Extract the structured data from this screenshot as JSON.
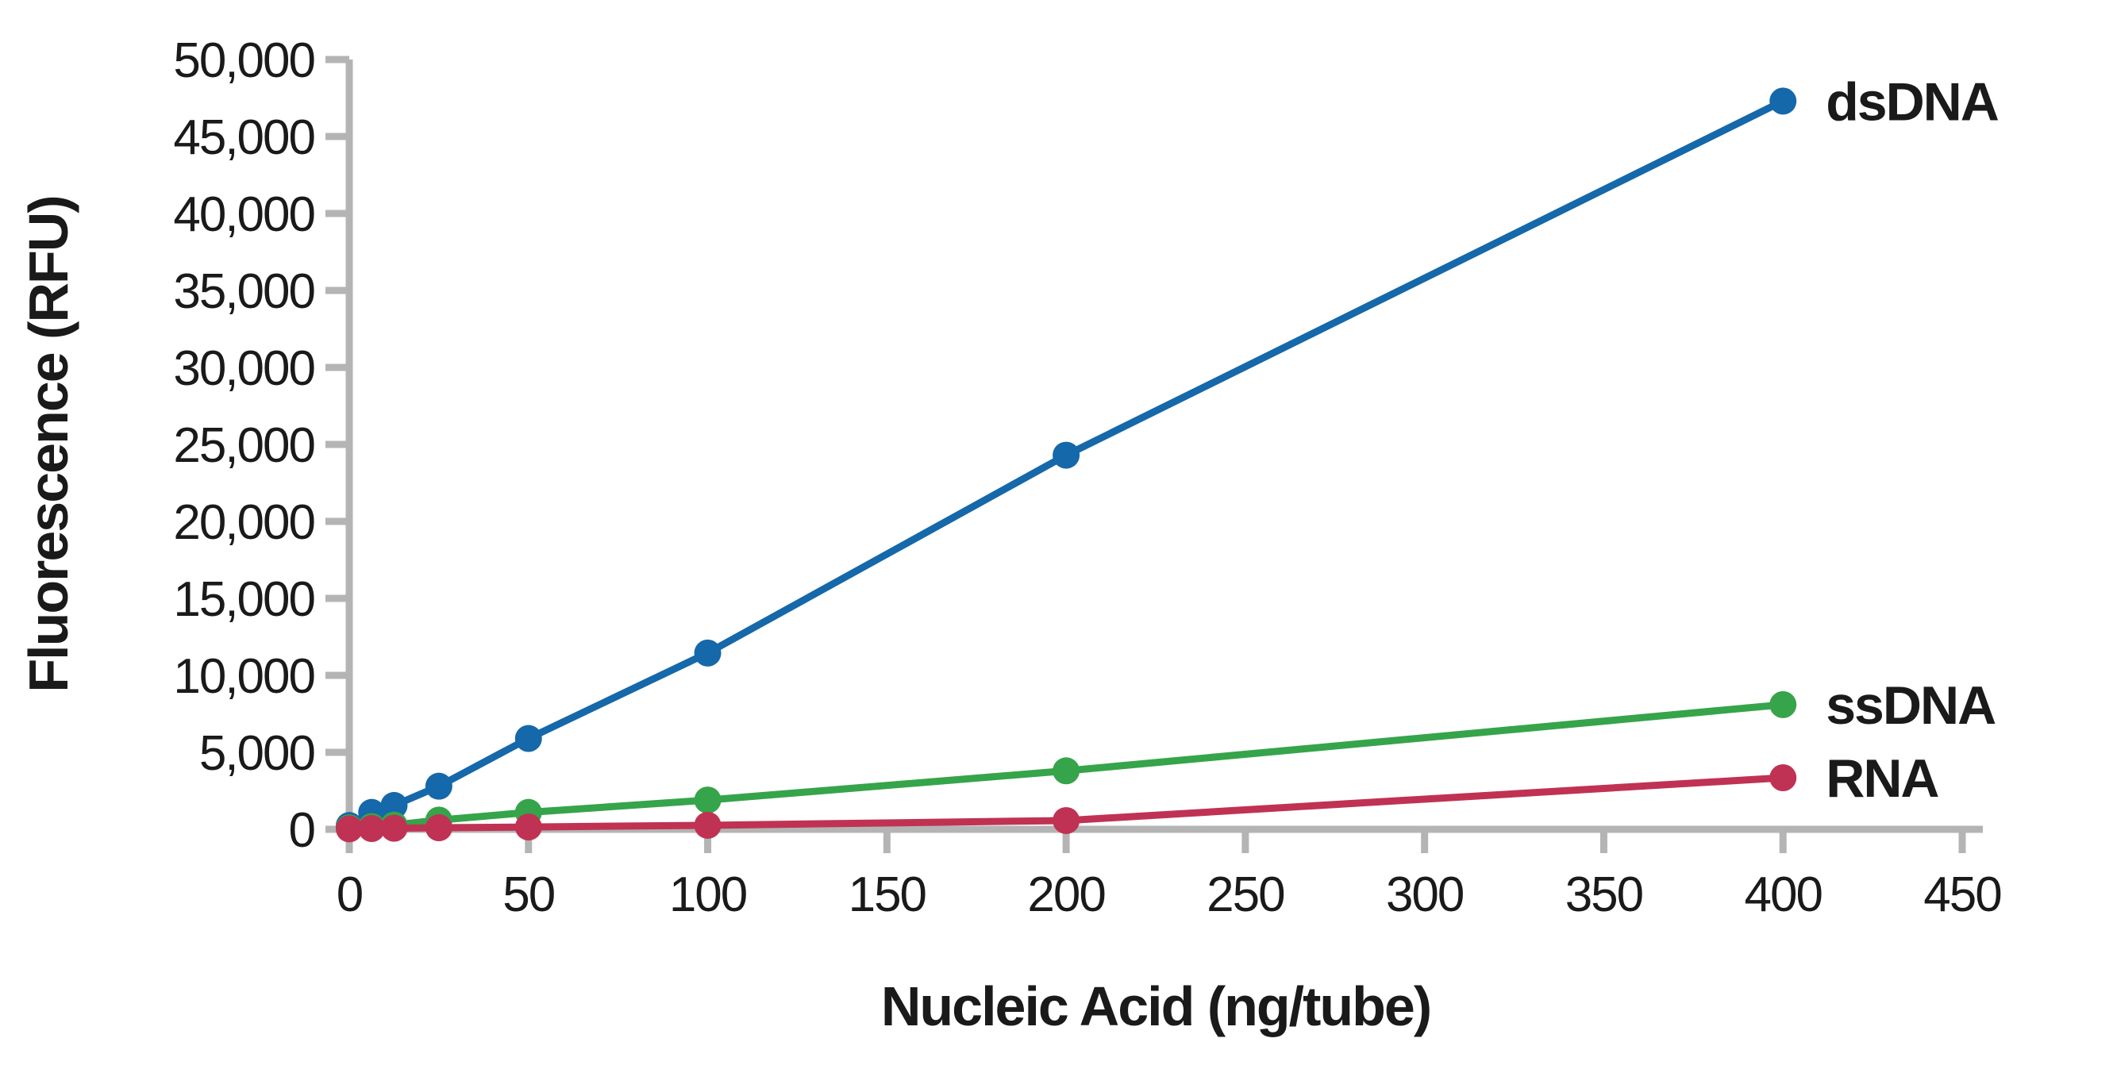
{
  "chart_data": {
    "type": "line",
    "title": "",
    "xlabel": "Nucleic Acid (ng/tube)",
    "ylabel": "Fluorescence (RFU)",
    "x": [
      0,
      6.25,
      12.5,
      25,
      50,
      100,
      200,
      400
    ],
    "series": [
      {
        "name": "dsDNA",
        "color": "#1568a9",
        "values": [
          250,
          1100,
          1550,
          2800,
          5900,
          11450,
          24300,
          47300
        ]
      },
      {
        "name": "ssDNA",
        "color": "#36a44a",
        "values": [
          100,
          180,
          280,
          600,
          1100,
          1900,
          3800,
          8100
        ]
      },
      {
        "name": "RNA",
        "color": "#c03253",
        "values": [
          30,
          50,
          70,
          100,
          150,
          260,
          570,
          3350
        ]
      }
    ],
    "xlim": [
      0,
      450
    ],
    "ylim": [
      0,
      50000
    ],
    "x_ticks": [
      0,
      50,
      100,
      150,
      200,
      250,
      300,
      350,
      400,
      450
    ],
    "y_ticks": [
      0,
      5000,
      10000,
      15000,
      20000,
      25000,
      30000,
      35000,
      40000,
      45000,
      50000
    ],
    "grid": false,
    "legend_position": "line-end-labels",
    "axis_color": "#b4b4b4",
    "text_color": "#1a1a1a",
    "marker_radius": 17,
    "line_width": 9
  }
}
